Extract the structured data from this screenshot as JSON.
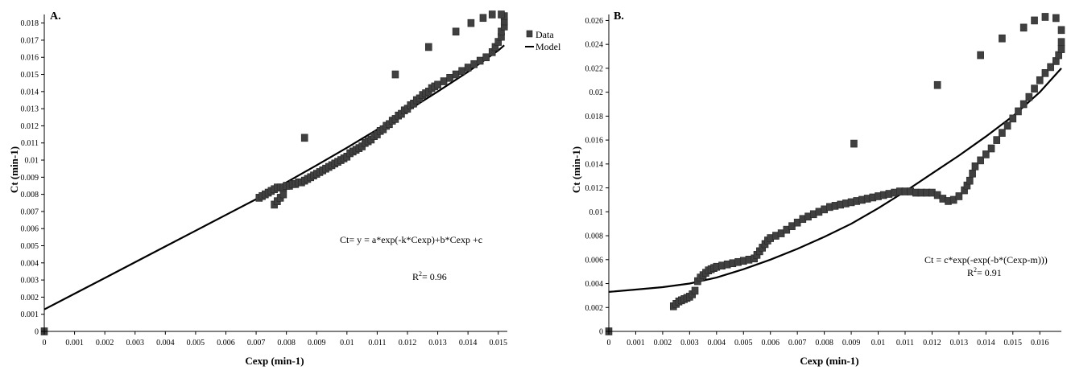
{
  "chart_data": [
    {
      "type": "scatter",
      "panel_label": "A.",
      "xlabel": "Cexp (min-1)",
      "ylabel": "Ct (min-1)",
      "xlim": [
        0,
        0.0153
      ],
      "ylim": [
        0,
        0.0185
      ],
      "xticks": [
        "0",
        "0.001",
        "0.002",
        "0.003",
        "0.004",
        "0.005",
        "0.006",
        "0.007",
        "0.008",
        "0.009",
        "0.01",
        "0.011",
        "0.012",
        "0.013",
        "0.014",
        "0.015"
      ],
      "yticks": [
        "0",
        "0.001",
        "0.002",
        "0.003",
        "0.004",
        "0.005",
        "0.006",
        "0.007",
        "0.008",
        "0.009",
        "0.01",
        "0.011",
        "0.012",
        "0.013",
        "0.014",
        "0.015",
        "0.016",
        "0.017",
        "0.018"
      ],
      "legend": {
        "position": "top-right-outside",
        "entries": [
          "Data",
          "Model"
        ]
      },
      "annotations": [
        "Ct= y = a*exp(-k*Cexp)+b*Cexp +c",
        "R",
        "2",
        "= 0.96"
      ],
      "series": [
        {
          "name": "Data",
          "style": "square-marker",
          "points": [
            [
              0,
              0
            ],
            [
              0.0071,
              0.0078
            ],
            [
              0.0072,
              0.0079
            ],
            [
              0.0073,
              0.008
            ],
            [
              0.0074,
              0.0081
            ],
            [
              0.0075,
              0.0082
            ],
            [
              0.0076,
              0.0083
            ],
            [
              0.0077,
              0.0084
            ],
            [
              0.0078,
              0.0084
            ],
            [
              0.0079,
              0.0084
            ],
            [
              0.008,
              0.0085
            ],
            [
              0.0081,
              0.0085
            ],
            [
              0.0082,
              0.0086
            ],
            [
              0.0083,
              0.0086
            ],
            [
              0.0084,
              0.0087
            ],
            [
              0.0085,
              0.0087
            ],
            [
              0.0086,
              0.0088
            ],
            [
              0.0087,
              0.0089
            ],
            [
              0.0088,
              0.009
            ],
            [
              0.0089,
              0.0091
            ],
            [
              0.009,
              0.0092
            ],
            [
              0.0091,
              0.0093
            ],
            [
              0.0092,
              0.0094
            ],
            [
              0.0093,
              0.0095
            ],
            [
              0.0094,
              0.0096
            ],
            [
              0.0095,
              0.0097
            ],
            [
              0.0096,
              0.0098
            ],
            [
              0.0097,
              0.0099
            ],
            [
              0.0098,
              0.01
            ],
            [
              0.0099,
              0.0101
            ],
            [
              0.01,
              0.0102
            ],
            [
              0.0101,
              0.0104
            ],
            [
              0.0102,
              0.0105
            ],
            [
              0.0103,
              0.0106
            ],
            [
              0.0104,
              0.0107
            ],
            [
              0.0105,
              0.0108
            ],
            [
              0.0106,
              0.011
            ],
            [
              0.0107,
              0.0111
            ],
            [
              0.0108,
              0.0112
            ],
            [
              0.0109,
              0.0114
            ],
            [
              0.011,
              0.0115
            ],
            [
              0.0111,
              0.0117
            ],
            [
              0.0112,
              0.0118
            ],
            [
              0.0113,
              0.012
            ],
            [
              0.0114,
              0.0121
            ],
            [
              0.0115,
              0.0123
            ],
            [
              0.0116,
              0.0124
            ],
            [
              0.0117,
              0.0126
            ],
            [
              0.0118,
              0.0127
            ],
            [
              0.0119,
              0.0129
            ],
            [
              0.012,
              0.013
            ],
            [
              0.0121,
              0.0132
            ],
            [
              0.0122,
              0.0133
            ],
            [
              0.0123,
              0.0135
            ],
            [
              0.0124,
              0.0136
            ],
            [
              0.0125,
              0.0138
            ],
            [
              0.0126,
              0.0139
            ],
            [
              0.0127,
              0.014
            ],
            [
              0.0128,
              0.0142
            ],
            [
              0.0129,
              0.0143
            ],
            [
              0.013,
              0.0144
            ],
            [
              0.0132,
              0.0146
            ],
            [
              0.0134,
              0.0148
            ],
            [
              0.0136,
              0.015
            ],
            [
              0.0138,
              0.0152
            ],
            [
              0.014,
              0.0154
            ],
            [
              0.0142,
              0.0156
            ],
            [
              0.0144,
              0.0158
            ],
            [
              0.0146,
              0.016
            ],
            [
              0.0148,
              0.0163
            ],
            [
              0.0149,
              0.0166
            ],
            [
              0.015,
              0.0169
            ],
            [
              0.0151,
              0.0172
            ],
            [
              0.0151,
              0.0175
            ],
            [
              0.0152,
              0.0178
            ],
            [
              0.0152,
              0.0181
            ],
            [
              0.0152,
              0.0184
            ],
            [
              0.0151,
              0.0185
            ],
            [
              0.0148,
              0.0185
            ],
            [
              0.0145,
              0.0183
            ],
            [
              0.0141,
              0.018
            ],
            [
              0.0136,
              0.0175
            ],
            [
              0.0127,
              0.0166
            ],
            [
              0.0116,
              0.015
            ],
            [
              0.0086,
              0.0113
            ],
            [
              0.0076,
              0.0074
            ],
            [
              0.0077,
              0.0076
            ],
            [
              0.0078,
              0.0078
            ],
            [
              0.0079,
              0.008
            ]
          ]
        },
        {
          "name": "Model",
          "style": "line",
          "points": [
            [
              0,
              0.00128
            ],
            [
              0.001,
              0.0022
            ],
            [
              0.002,
              0.00312
            ],
            [
              0.003,
              0.00404
            ],
            [
              0.004,
              0.00496
            ],
            [
              0.005,
              0.00588
            ],
            [
              0.006,
              0.0068
            ],
            [
              0.007,
              0.00772
            ],
            [
              0.008,
              0.0087
            ],
            [
              0.009,
              0.0097
            ],
            [
              0.01,
              0.01072
            ],
            [
              0.011,
              0.01178
            ],
            [
              0.012,
              0.01288
            ],
            [
              0.013,
              0.014
            ],
            [
              0.014,
              0.01515
            ],
            [
              0.015,
              0.0164
            ],
            [
              0.0152,
              0.0167
            ]
          ]
        }
      ]
    },
    {
      "type": "scatter",
      "panel_label": "B.",
      "xlabel": "Cexp (min-1)",
      "ylabel": "Ct (min-1)",
      "xlim": [
        0,
        0.0168
      ],
      "ylim": [
        0,
        0.0265
      ],
      "xticks": [
        "0",
        "0.001",
        "0.002",
        "0.003",
        "0.004",
        "0.005",
        "0.006",
        "0.007",
        "0.008",
        "0.009",
        "0.01",
        "0.011",
        "0.012",
        "0.013",
        "0.014",
        "0.015",
        "0.016"
      ],
      "yticks": [
        "0",
        "0.002",
        "0.004",
        "0.006",
        "0.008",
        "0.01",
        "0.012",
        "0.014",
        "0.016",
        "0.018",
        "0.02",
        "0.022",
        "0.024",
        "0.026"
      ],
      "annotations": [
        "Ct = c*exp(-exp(-b*(Cexp-m)))",
        "R",
        "2",
        "= 0.91"
      ],
      "series": [
        {
          "name": "Data",
          "style": "square-marker",
          "points": [
            [
              0,
              0
            ],
            [
              0.0024,
              0.0021
            ],
            [
              0.0025,
              0.0023
            ],
            [
              0.0026,
              0.0025
            ],
            [
              0.0027,
              0.0026
            ],
            [
              0.0028,
              0.0027
            ],
            [
              0.0029,
              0.0028
            ],
            [
              0.003,
              0.0029
            ],
            [
              0.0031,
              0.0031
            ],
            [
              0.0032,
              0.0034
            ],
            [
              0.0033,
              0.0042
            ],
            [
              0.0034,
              0.0045
            ],
            [
              0.0035,
              0.0047
            ],
            [
              0.0036,
              0.0049
            ],
            [
              0.0037,
              0.0051
            ],
            [
              0.0038,
              0.0052
            ],
            [
              0.0039,
              0.0053
            ],
            [
              0.004,
              0.0054
            ],
            [
              0.0042,
              0.0055
            ],
            [
              0.0044,
              0.0056
            ],
            [
              0.0046,
              0.0057
            ],
            [
              0.0048,
              0.0058
            ],
            [
              0.005,
              0.0059
            ],
            [
              0.0052,
              0.006
            ],
            [
              0.0054,
              0.0061
            ],
            [
              0.0055,
              0.0064
            ],
            [
              0.0056,
              0.0067
            ],
            [
              0.0057,
              0.007
            ],
            [
              0.0058,
              0.0073
            ],
            [
              0.0059,
              0.0076
            ],
            [
              0.006,
              0.0078
            ],
            [
              0.0062,
              0.008
            ],
            [
              0.0064,
              0.0082
            ],
            [
              0.0066,
              0.0085
            ],
            [
              0.0068,
              0.0088
            ],
            [
              0.007,
              0.0091
            ],
            [
              0.0072,
              0.0094
            ],
            [
              0.0074,
              0.0096
            ],
            [
              0.0076,
              0.0098
            ],
            [
              0.0078,
              0.01
            ],
            [
              0.008,
              0.0102
            ],
            [
              0.0082,
              0.0104
            ],
            [
              0.0084,
              0.0105
            ],
            [
              0.0086,
              0.0106
            ],
            [
              0.0088,
              0.0107
            ],
            [
              0.009,
              0.0108
            ],
            [
              0.0092,
              0.0109
            ],
            [
              0.0094,
              0.011
            ],
            [
              0.0096,
              0.0111
            ],
            [
              0.0098,
              0.0112
            ],
            [
              0.01,
              0.0113
            ],
            [
              0.0102,
              0.0114
            ],
            [
              0.0104,
              0.0115
            ],
            [
              0.0106,
              0.0116
            ],
            [
              0.0108,
              0.0117
            ],
            [
              0.011,
              0.0117
            ],
            [
              0.0112,
              0.0117
            ],
            [
              0.0114,
              0.0116
            ],
            [
              0.0116,
              0.0116
            ],
            [
              0.0118,
              0.0116
            ],
            [
              0.012,
              0.0116
            ],
            [
              0.0122,
              0.0114
            ],
            [
              0.0124,
              0.0111
            ],
            [
              0.0126,
              0.0109
            ],
            [
              0.0128,
              0.011
            ],
            [
              0.013,
              0.0113
            ],
            [
              0.0132,
              0.0118
            ],
            [
              0.0133,
              0.0122
            ],
            [
              0.0134,
              0.0126
            ],
            [
              0.0135,
              0.0132
            ],
            [
              0.0136,
              0.0138
            ],
            [
              0.0138,
              0.0143
            ],
            [
              0.014,
              0.0148
            ],
            [
              0.0142,
              0.0153
            ],
            [
              0.0144,
              0.016
            ],
            [
              0.0146,
              0.0166
            ],
            [
              0.0148,
              0.0172
            ],
            [
              0.015,
              0.0178
            ],
            [
              0.0152,
              0.0184
            ],
            [
              0.0154,
              0.019
            ],
            [
              0.0156,
              0.0196
            ],
            [
              0.0158,
              0.0203
            ],
            [
              0.016,
              0.021
            ],
            [
              0.0162,
              0.0216
            ],
            [
              0.0164,
              0.0221
            ],
            [
              0.0166,
              0.0226
            ],
            [
              0.0167,
              0.0231
            ],
            [
              0.0168,
              0.0236
            ],
            [
              0.0168,
              0.0242
            ],
            [
              0.0168,
              0.0252
            ],
            [
              0.0166,
              0.0262
            ],
            [
              0.0162,
              0.0263
            ],
            [
              0.0158,
              0.026
            ],
            [
              0.0154,
              0.0254
            ],
            [
              0.0146,
              0.0245
            ],
            [
              0.0138,
              0.0231
            ],
            [
              0.0122,
              0.0206
            ],
            [
              0.0091,
              0.0157
            ]
          ]
        },
        {
          "name": "Model",
          "style": "line",
          "points": [
            [
              0,
              0.0033
            ],
            [
              0.001,
              0.0035
            ],
            [
              0.002,
              0.0037
            ],
            [
              0.003,
              0.004
            ],
            [
              0.004,
              0.0045
            ],
            [
              0.005,
              0.0052
            ],
            [
              0.006,
              0.006
            ],
            [
              0.007,
              0.0069
            ],
            [
              0.008,
              0.0079
            ],
            [
              0.009,
              0.009
            ],
            [
              0.01,
              0.0103
            ],
            [
              0.011,
              0.0117
            ],
            [
              0.012,
              0.0132
            ],
            [
              0.013,
              0.0147
            ],
            [
              0.014,
              0.0163
            ],
            [
              0.015,
              0.018
            ],
            [
              0.016,
              0.02
            ],
            [
              0.0168,
              0.022
            ]
          ]
        }
      ]
    }
  ]
}
